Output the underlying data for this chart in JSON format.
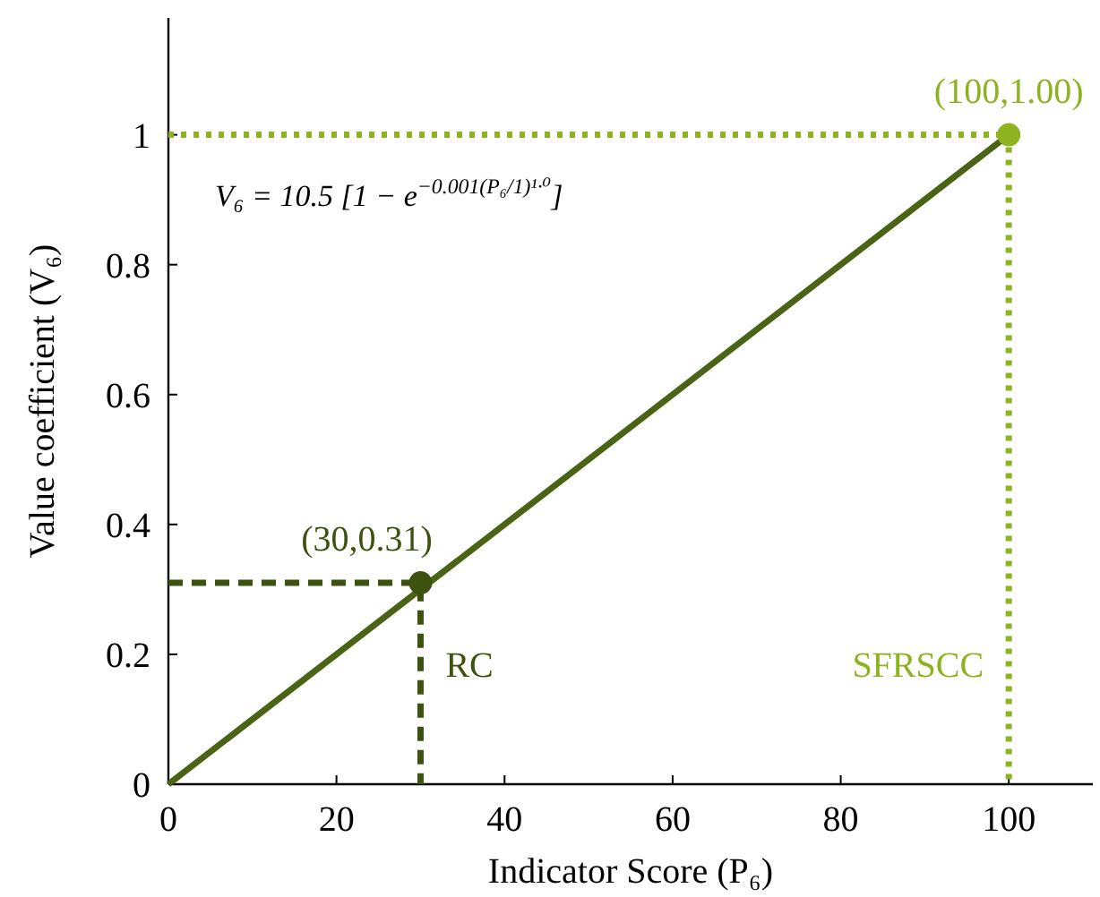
{
  "chart_data": {
    "type": "line",
    "xlabel": "Indicator Score (P₆)",
    "ylabel": "Value coefficient (V₆)",
    "xlim": [
      0,
      110
    ],
    "ylim": [
      0,
      1.18
    ],
    "xticks": [
      0,
      20,
      40,
      60,
      80,
      100
    ],
    "yticks": [
      0,
      0.2,
      0.4,
      0.6,
      0.8,
      1
    ],
    "grid": false,
    "series": [
      {
        "color": "#4b6314",
        "x": [
          0,
          100
        ],
        "values": [
          0,
          1
        ],
        "line_style": "solid"
      },
      {
        "color": "#3d520f",
        "x": [
          0,
          30,
          30
        ],
        "values": [
          0.31,
          0.31,
          0
        ],
        "line_style": "dashed"
      },
      {
        "color": "#8db320",
        "x": [
          0,
          100,
          100
        ],
        "values": [
          1,
          1,
          0
        ],
        "line_style": "dotted"
      },
      {
        "type": "scatter",
        "color": "#3d520f",
        "x": [
          30
        ],
        "values": [
          0.31
        ],
        "marker": "circle"
      },
      {
        "type": "scatter",
        "color": "#8db320",
        "x": [
          100
        ],
        "values": [
          1
        ],
        "marker": "circle"
      }
    ],
    "annotations": [
      "(30,0.31)",
      "RC",
      "(100,1.00)",
      "SFRSCC",
      "V₆ = 10.5 [1 − e$^{−0.001(P₆/1)¹·⁰}$]"
    ]
  }
}
